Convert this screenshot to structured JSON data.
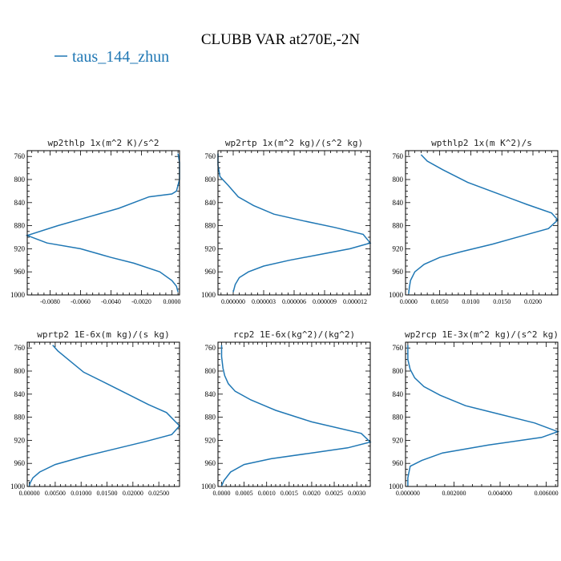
{
  "title": "CLUBB VAR at270E,-2N",
  "legend": {
    "label": "taus_144_zhun",
    "color": "#1f77b4"
  },
  "line_color": "#1f77b4",
  "chart_data": [
    {
      "type": "line",
      "title": "wp2thlp   1x(m^2 K)/s^2",
      "xlim": [
        -0.0095,
        0.0005
      ],
      "ylim": [
        1000,
        750
      ],
      "yticks": [
        760,
        800,
        840,
        880,
        920,
        960,
        1000
      ],
      "xticks": [
        -0.008,
        -0.006,
        -0.004,
        -0.002,
        0.0
      ],
      "xtick_labels": [
        "-0.0080",
        "-0.0060",
        "-0.0040",
        "-0.0020",
        "0.0000"
      ],
      "series": [
        {
          "x": [
            0.0004,
            0.0005,
            0.0005,
            0.0005,
            0.0004,
            0.0003,
            0.0,
            -0.0015,
            -0.0035,
            -0.0055,
            -0.0075,
            -0.0095,
            -0.0082,
            -0.006,
            -0.004,
            -0.0025,
            -0.0008,
            0.0,
            0.0003,
            0.0004
          ],
          "y": [
            755,
            770,
            785,
            800,
            810,
            820,
            825,
            830,
            850,
            865,
            880,
            897,
            910,
            920,
            935,
            945,
            960,
            975,
            985,
            995
          ]
        }
      ]
    },
    {
      "type": "line",
      "title": "wp2rtp   1x(m^2 kg)/(s^2 kg)",
      "xlim": [
        -1.5e-06,
        1.35e-05
      ],
      "ylim": [
        1000,
        750
      ],
      "yticks": [
        760,
        800,
        840,
        880,
        920,
        960,
        1000
      ],
      "xticks": [
        0.0,
        3e-06,
        6e-06,
        9e-06,
        1.2e-05
      ],
      "xtick_labels": [
        "0.000000",
        "0.000003",
        "0.000006",
        "0.000009",
        "0.000012"
      ],
      "series": [
        {
          "x": [
            -1.5e-06,
            -1.5e-06,
            -1.3e-06,
            -5e-07,
            5e-07,
            2e-06,
            4e-06,
            7e-06,
            1e-05,
            1.28e-05,
            1.35e-05,
            1.15e-05,
            8.5e-06,
            5.5e-06,
            3e-06,
            1.5e-06,
            6e-07,
            2e-07,
            0.0
          ],
          "y": [
            755,
            775,
            795,
            810,
            830,
            845,
            860,
            872,
            883,
            895,
            910,
            920,
            930,
            940,
            950,
            960,
            970,
            982,
            995
          ]
        }
      ]
    },
    {
      "type": "line",
      "title": "wpthlp2   1x(m K^2)/s",
      "xlim": [
        -0.0005,
        0.024
      ],
      "ylim": [
        1000,
        750
      ],
      "yticks": [
        760,
        800,
        840,
        880,
        920,
        960,
        1000
      ],
      "xticks": [
        0.0,
        0.005,
        0.01,
        0.015,
        0.02
      ],
      "xtick_labels": [
        "0.0000",
        "0.0050",
        "0.0100",
        "0.0150",
        "0.0200"
      ],
      "series": [
        {
          "x": [
            0.002,
            0.003,
            0.0055,
            0.0095,
            0.014,
            0.019,
            0.023,
            0.024,
            0.0225,
            0.0185,
            0.0135,
            0.0085,
            0.005,
            0.0025,
            0.001,
            0.0003,
            0.0001,
            0.0
          ],
          "y": [
            757,
            768,
            783,
            805,
            823,
            843,
            858,
            870,
            885,
            897,
            912,
            925,
            935,
            947,
            960,
            975,
            988,
            998
          ]
        }
      ]
    },
    {
      "type": "line",
      "title": "wprtp2   1E-6x(m kg)/(s kg)",
      "xlim": [
        -0.0004,
        0.029
      ],
      "ylim": [
        1000,
        750
      ],
      "yticks": [
        760,
        800,
        840,
        880,
        920,
        960,
        1000
      ],
      "xticks": [
        0.0,
        0.005,
        0.01,
        0.015,
        0.02,
        0.025
      ],
      "xtick_labels": [
        "0.00000",
        "0.00500",
        "0.01000",
        "0.01500",
        "0.02000",
        "0.02500"
      ],
      "series": [
        {
          "x": [
            0.0045,
            0.0055,
            0.0075,
            0.0105,
            0.015,
            0.019,
            0.023,
            0.0265,
            0.029,
            0.0275,
            0.0225,
            0.0165,
            0.0105,
            0.005,
            0.002,
            0.0007,
            0.0002,
            0.0
          ],
          "y": [
            755,
            765,
            780,
            802,
            822,
            840,
            858,
            872,
            895,
            910,
            922,
            935,
            948,
            962,
            975,
            985,
            993,
            999
          ]
        }
      ]
    },
    {
      "type": "line",
      "title": "rcp2   1E-6x(kg^2)/(kg^2)",
      "xlim": [
        -8e-05,
        0.0033
      ],
      "ylim": [
        1000,
        750
      ],
      "yticks": [
        760,
        800,
        840,
        880,
        920,
        960,
        1000
      ],
      "xticks": [
        0.0,
        0.0005,
        0.001,
        0.0015,
        0.002,
        0.0025,
        0.003
      ],
      "xtick_labels": [
        "0.0000",
        "0.0005",
        "0.0010",
        "0.0015",
        "0.0020",
        "0.0025",
        "0.0030"
      ],
      "series": [
        {
          "x": [
            0.0,
            0.0,
            3e-05,
            7e-05,
            0.00015,
            0.0003,
            0.00065,
            0.0012,
            0.002,
            0.0031,
            0.0033,
            0.0028,
            0.002,
            0.0011,
            0.0005,
            0.0002,
            5e-05,
            0.0
          ],
          "y": [
            755,
            775,
            795,
            808,
            822,
            835,
            850,
            868,
            888,
            908,
            923,
            933,
            942,
            952,
            962,
            975,
            990,
            999
          ]
        }
      ]
    },
    {
      "type": "line",
      "title": "wp2rcp   1E-3x(m^2 kg)/(s^2 kg)",
      "xlim": [
        -0.0001,
        0.0065
      ],
      "ylim": [
        1000,
        750
      ],
      "yticks": [
        760,
        800,
        840,
        880,
        920,
        960,
        1000
      ],
      "xticks": [
        0.0,
        0.002,
        0.004,
        0.006
      ],
      "xtick_labels": [
        "0.000000",
        "0.002000",
        "0.004000",
        "0.006000"
      ],
      "series": [
        {
          "x": [
            0.0,
            0.0,
            0.0001,
            0.0003,
            0.0007,
            0.0014,
            0.0025,
            0.004,
            0.0055,
            0.0065,
            0.0058,
            0.0035,
            0.0015,
            0.0006,
            0.0001,
            0.0,
            0.0
          ],
          "y": [
            755,
            780,
            797,
            812,
            827,
            842,
            860,
            875,
            890,
            905,
            915,
            928,
            942,
            955,
            965,
            985,
            999
          ]
        }
      ]
    }
  ]
}
